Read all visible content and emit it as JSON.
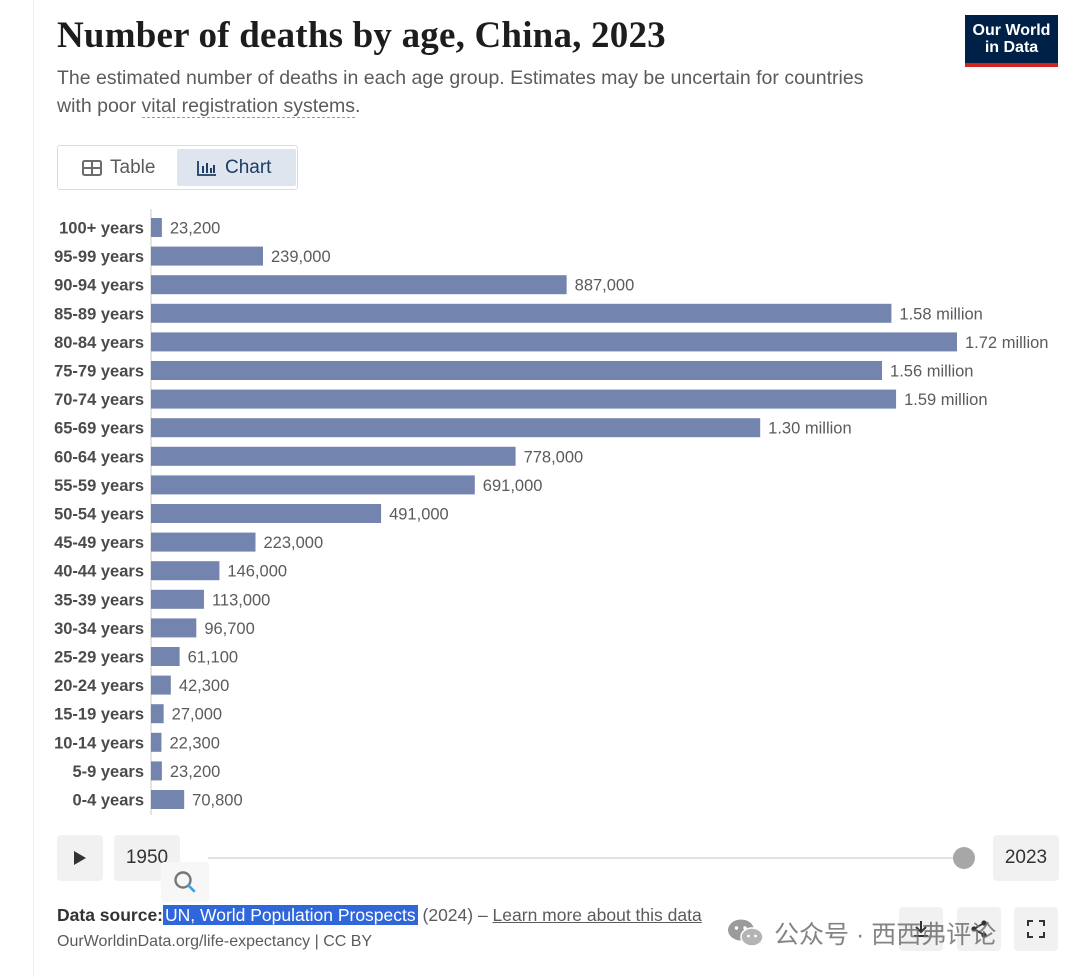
{
  "header": {
    "title": "Number of deaths by age, China, 2023",
    "subtitle_before": "The estimated number of deaths in each age group. Estimates may be uncertain for countries with poor ",
    "subtitle_link": "vital registration systems",
    "subtitle_after": ".",
    "logo_line1": "Our World",
    "logo_line2": "in Data"
  },
  "tabs": [
    {
      "label": "Table",
      "icon": "table-icon"
    },
    {
      "label": "Chart",
      "icon": "bar-chart-icon",
      "active": true
    }
  ],
  "chart_data": {
    "type": "bar",
    "orientation": "horizontal",
    "title": "Number of deaths by age, China, 2023",
    "categories": [
      "100+ years",
      "95-99 years",
      "90-94 years",
      "85-89 years",
      "80-84 years",
      "75-79 years",
      "70-74 years",
      "65-69 years",
      "60-64 years",
      "55-59 years",
      "50-54 years",
      "45-49 years",
      "40-44 years",
      "35-39 years",
      "30-34 years",
      "25-29 years",
      "20-24 years",
      "15-19 years",
      "10-14 years",
      "5-9 years",
      "0-4 years"
    ],
    "values": [
      23200,
      239000,
      887000,
      1580000,
      1720000,
      1560000,
      1590000,
      1300000,
      778000,
      691000,
      491000,
      223000,
      146000,
      113000,
      96700,
      61100,
      42300,
      27000,
      22300,
      23200,
      70800
    ],
    "value_labels": [
      "23,200",
      "239,000",
      "887,000",
      "1.58 million",
      "1.72 million",
      "1.56 million",
      "1.59 million",
      "1.30 million",
      "778,000",
      "691,000",
      "491,000",
      "223,000",
      "146,000",
      "113,000",
      "96,700",
      "61,100",
      "42,300",
      "27,000",
      "22,300",
      "23,200",
      "70,800"
    ],
    "xlim": [
      0,
      1720000
    ],
    "bar_color": "#7385ae",
    "xlabel": "",
    "ylabel": ""
  },
  "timeline": {
    "start_year": "1950",
    "end_year": "2023"
  },
  "footer": {
    "source_label": "Data source:",
    "source_name": "UN, World Population Prospects",
    "source_year": " (2024) – ",
    "learn_more": "Learn more about this data",
    "credit": "OurWorldinData.org/life-expectancy | CC BY"
  },
  "watermark": {
    "text": "公众号 · 西西弗评论"
  },
  "colors": {
    "bar": "#7385ae",
    "logo_bg": "#002147",
    "logo_accent": "#ce261e",
    "highlight": "#2f66d9"
  }
}
